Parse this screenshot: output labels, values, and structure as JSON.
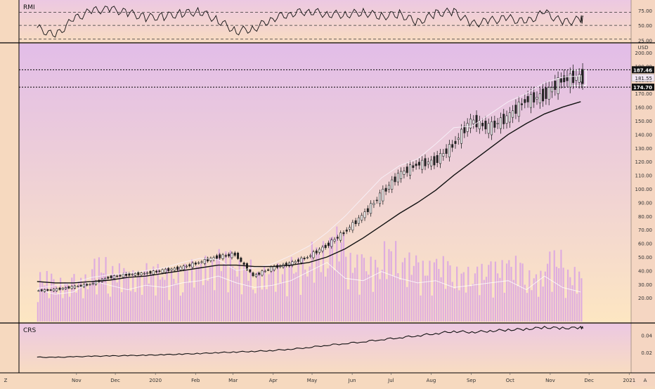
{
  "colors": {
    "bg_top": "#e2bde8",
    "bg_bottom": "#fde6c2",
    "candle": "#222222",
    "ma_slow": "#111111",
    "ma_fast": "#f7f1f8",
    "volume": "#d9a3e3",
    "price_tag_bg": "#111111",
    "price_tag_text": "#ffffff"
  },
  "chart_data": [
    {
      "type": "line",
      "title": "RMI",
      "ylim": [
        25,
        90
      ],
      "y_ticks": [
        "75.00",
        "50.00",
        "25.00"
      ],
      "reference_lines": [
        72,
        50,
        27
      ],
      "x": [
        "2019-10-07",
        "2019-10-21",
        "2019-11-04",
        "2019-11-18",
        "2019-12-02",
        "2019-12-16",
        "2019-12-30",
        "2020-01-13",
        "2020-01-27",
        "2020-02-10",
        "2020-02-24",
        "2020-03-09",
        "2020-03-23",
        "2020-04-06",
        "2020-04-20",
        "2020-05-04",
        "2020-05-18",
        "2020-06-01",
        "2020-06-15",
        "2020-06-29",
        "2020-07-13",
        "2020-07-27",
        "2020-08-10",
        "2020-08-24",
        "2020-09-07",
        "2020-09-21",
        "2020-10-05",
        "2020-10-19",
        "2020-11-02",
        "2020-11-16",
        "2020-11-30"
      ],
      "values": [
        46,
        32,
        60,
        74,
        78,
        71,
        63,
        65,
        70,
        73,
        58,
        40,
        45,
        62,
        70,
        74,
        69,
        68,
        72,
        65,
        69,
        55,
        70,
        73,
        52,
        58,
        62,
        55,
        72,
        55,
        60
      ]
    },
    {
      "type": "candlestick",
      "y_unit": "USD",
      "ylim": [
        14,
        200
      ],
      "y_ticks": [
        "200.00",
        "190.00",
        "180.00",
        "170.00",
        "160.00",
        "150.00",
        "140.00",
        "130.00",
        "120.00",
        "110.00",
        "100.00",
        "90.00",
        "80.00",
        "70.00",
        "60.00",
        "50.00",
        "40.00",
        "30.00",
        "20.00"
      ],
      "price_tags": [
        "187.46",
        "181.55",
        "174.70"
      ],
      "reference_lines": [
        187.46,
        174.7
      ],
      "x": [
        "2019-10-07",
        "2019-10-21",
        "2019-11-04",
        "2019-11-18",
        "2019-12-02",
        "2019-12-16",
        "2019-12-30",
        "2020-01-13",
        "2020-01-27",
        "2020-02-10",
        "2020-02-24",
        "2020-03-09",
        "2020-03-23",
        "2020-04-06",
        "2020-04-20",
        "2020-05-04",
        "2020-05-18",
        "2020-06-01",
        "2020-06-15",
        "2020-06-29",
        "2020-07-13",
        "2020-07-27",
        "2020-08-10",
        "2020-08-24",
        "2020-09-07",
        "2020-09-21",
        "2020-10-05",
        "2020-10-19",
        "2020-11-02",
        "2020-11-16",
        "2020-11-30"
      ],
      "close": [
        26,
        28,
        30,
        35,
        37,
        38,
        40,
        42,
        46,
        50,
        52,
        36,
        42,
        45,
        50,
        58,
        68,
        80,
        95,
        110,
        118,
        120,
        132,
        150,
        145,
        152,
        165,
        168,
        180,
        182,
        181
      ],
      "ma_slow": [
        32,
        31,
        31,
        32,
        33,
        35,
        36,
        38,
        40,
        42,
        44,
        44,
        43,
        43,
        44,
        46,
        50,
        56,
        64,
        73,
        82,
        90,
        99,
        110,
        120,
        130,
        140,
        148,
        155,
        160,
        164
      ],
      "ma_fast": [
        27,
        29,
        31,
        35,
        37,
        38,
        40,
        42,
        46,
        49,
        48,
        40,
        42,
        45,
        51,
        58,
        68,
        80,
        94,
        108,
        117,
        122,
        133,
        145,
        146,
        155,
        164,
        170,
        178,
        182,
        183
      ],
      "volume": [
        14,
        12,
        13,
        18,
        16,
        14,
        16,
        15,
        17,
        18,
        20,
        17,
        15,
        16,
        18,
        22,
        26,
        19,
        18,
        22,
        19,
        17,
        18,
        15,
        16,
        17,
        18,
        14,
        20,
        15,
        13
      ]
    },
    {
      "type": "line",
      "title": "CRS",
      "ylim": [
        0.0,
        0.05
      ],
      "y_ticks": [
        "0.04",
        "0.02"
      ],
      "x": [
        "2019-10-07",
        "2019-10-21",
        "2019-11-04",
        "2019-11-18",
        "2019-12-02",
        "2019-12-16",
        "2019-12-30",
        "2020-01-13",
        "2020-01-27",
        "2020-02-10",
        "2020-02-24",
        "2020-03-09",
        "2020-03-23",
        "2020-04-06",
        "2020-04-20",
        "2020-05-04",
        "2020-05-18",
        "2020-06-01",
        "2020-06-15",
        "2020-06-29",
        "2020-07-13",
        "2020-07-27",
        "2020-08-10",
        "2020-08-24",
        "2020-09-07",
        "2020-09-21",
        "2020-10-05",
        "2020-10-19",
        "2020-11-02",
        "2020-11-16",
        "2020-11-30"
      ],
      "values": [
        0.0148,
        0.0145,
        0.0152,
        0.0158,
        0.0162,
        0.0166,
        0.017,
        0.0176,
        0.0183,
        0.019,
        0.02,
        0.0208,
        0.0215,
        0.0225,
        0.024,
        0.026,
        0.0285,
        0.0305,
        0.0325,
        0.035,
        0.0372,
        0.0395,
        0.042,
        0.0445,
        0.0435,
        0.0448,
        0.0462,
        0.047,
        0.049,
        0.048,
        0.0487
      ]
    }
  ],
  "x_axis": {
    "labels": [
      "Nov",
      "Dec",
      "2020",
      "Feb",
      "Mar",
      "Apr",
      "May",
      "Jun",
      "Jul",
      "Aug",
      "Sep",
      "Oct",
      "Nov",
      "Dec",
      "2021"
    ],
    "left_marker": "Z",
    "right_marker": "A"
  }
}
